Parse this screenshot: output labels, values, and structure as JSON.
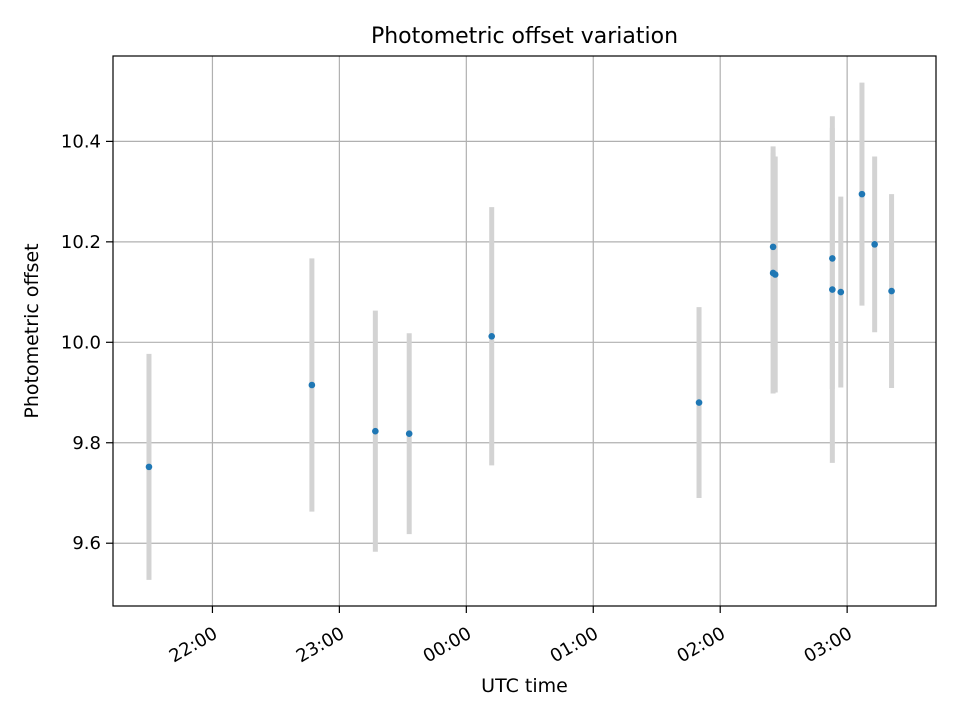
{
  "chart_data": {
    "type": "scatter",
    "title": "Photometric offset variation",
    "xlabel": "UTC time",
    "ylabel": "Photometric offset",
    "x_axis_type": "time",
    "x_reference_date": "",
    "xlim": [
      "21:13",
      "03:42"
    ],
    "ylim": [
      9.475,
      10.57
    ],
    "xticks": [
      "22:00",
      "23:00",
      "00:00",
      "01:00",
      "02:00",
      "03:00"
    ],
    "yticks": [
      9.6,
      9.8,
      10.0,
      10.2,
      10.4
    ],
    "ytick_labels": [
      "9.6",
      "9.8",
      "10.0",
      "10.2",
      "10.4"
    ],
    "grid": true,
    "series": [
      {
        "x": [
          "21:30",
          "22:47",
          "23:17",
          "23:33",
          "00:12",
          "01:50",
          "02:25",
          "02:25",
          "02:26",
          "02:53",
          "02:53",
          "02:57",
          "03:07",
          "03:13",
          "03:21"
        ],
        "y": [
          9.752,
          9.915,
          9.823,
          9.818,
          10.012,
          9.88,
          10.19,
          10.138,
          10.135,
          10.105,
          10.167,
          10.1,
          10.295,
          10.195,
          10.102
        ],
        "yerr": [
          0.225,
          0.252,
          0.24,
          0.2,
          0.257,
          0.19,
          0.2,
          0.24,
          0.235,
          0.345,
          0.26,
          0.19,
          0.222,
          0.175,
          0.193
        ],
        "marker_color": "#1f77b4",
        "errorbar_color": "#d3d3d3"
      }
    ]
  }
}
